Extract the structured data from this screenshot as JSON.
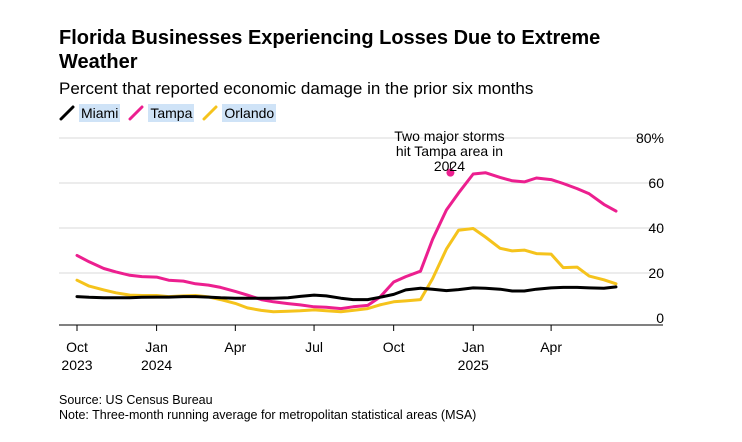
{
  "header": {
    "title": "Florida Businesses Experiencing Losses Due to Extreme Weather",
    "subtitle": "Percent that reported economic damage in the prior six months"
  },
  "footer": {
    "source": "Source: US Census Bureau",
    "note": "Note: Three-month running average for metropolitan statistical areas (MSA)"
  },
  "chart_data": {
    "type": "line",
    "x_labels": [
      "2023-10-01",
      "2023-10-15",
      "2023-11-01",
      "2023-11-15",
      "2023-12-01",
      "2023-12-15",
      "2024-01-01",
      "2024-01-15",
      "2024-02-01",
      "2024-02-15",
      "2024-03-01",
      "2024-03-15",
      "2024-04-01",
      "2024-04-15",
      "2024-05-01",
      "2024-05-15",
      "2024-06-01",
      "2024-06-15",
      "2024-07-01",
      "2024-07-15",
      "2024-08-01",
      "2024-08-15",
      "2024-09-01",
      "2024-09-15",
      "2024-10-01",
      "2024-10-15",
      "2024-11-01",
      "2024-11-15",
      "2024-12-01",
      "2024-12-15",
      "2025-01-01",
      "2025-01-15",
      "2025-02-01",
      "2025-02-15",
      "2025-03-01",
      "2025-03-15",
      "2025-04-01",
      "2025-04-15",
      "2025-05-01",
      "2025-05-15",
      "2025-06-01",
      "2025-06-15"
    ],
    "series": [
      {
        "name": "Miami",
        "color": "#000000",
        "values": [
          9.5,
          9.2,
          9,
          9,
          9,
          9.2,
          9.3,
          9.3,
          9.5,
          9.5,
          9.3,
          9,
          8.8,
          8.8,
          8.8,
          8.8,
          9,
          9.6,
          10.2,
          9.8,
          8.8,
          8.2,
          8.2,
          9.2,
          10.5,
          12.5,
          13.2,
          12.8,
          12.2,
          12.6,
          13.4,
          13.2,
          12.8,
          12,
          12,
          12.8,
          13.4,
          13.6,
          13.6,
          13.4,
          13.2,
          13.8
        ]
      },
      {
        "name": "Tampa",
        "color": "#ec1f8f",
        "values": [
          27.8,
          25,
          22,
          20.5,
          19,
          18.4,
          18.2,
          16.8,
          16.4,
          15.2,
          14.6,
          13.6,
          11.8,
          10.2,
          8.2,
          7.2,
          6.4,
          5.8,
          5,
          4.8,
          4.2,
          5,
          5.6,
          9.2,
          16,
          18.4,
          20.8,
          35,
          48,
          55.5,
          64,
          64.6,
          62.5,
          61,
          60.5,
          62.2,
          61.5,
          59.8,
          57.5,
          55.2,
          50.5,
          47.5
        ]
      },
      {
        "name": "Orlando",
        "color": "#f5c31c",
        "values": [
          16.8,
          14.2,
          12.5,
          11.2,
          10.2,
          10,
          10,
          9.5,
          9.8,
          10,
          9.4,
          8.2,
          6.5,
          4.5,
          3.4,
          2.8,
          3,
          3.2,
          3.6,
          3.2,
          2.8,
          3.4,
          4.2,
          5.8,
          7.2,
          7.6,
          8.2,
          17.5,
          30.6,
          39,
          39.8,
          36,
          31,
          29.8,
          30.2,
          28.6,
          28.4,
          22.4,
          22.6,
          18.6,
          17,
          15.2
        ]
      }
    ],
    "ylim": [
      0,
      80
    ],
    "y_ticks": [
      "0",
      "20",
      "40",
      "60",
      "80%"
    ],
    "y_tick_values": [
      0,
      20,
      40,
      60,
      80
    ],
    "x_ticks": [
      {
        "label_top": "Oct",
        "label_bottom": "2023",
        "date": "2023-10-01"
      },
      {
        "label_top": "Jan",
        "label_bottom": "2024",
        "date": "2024-01-01"
      },
      {
        "label_top": "Apr",
        "label_bottom": "",
        "date": "2024-04-01"
      },
      {
        "label_top": "Jul",
        "label_bottom": "",
        "date": "2024-07-01"
      },
      {
        "label_top": "Oct",
        "label_bottom": "",
        "date": "2024-10-01"
      },
      {
        "label_top": "Jan",
        "label_bottom": "2025",
        "date": "2025-01-01"
      },
      {
        "label_top": "Apr",
        "label_bottom": "",
        "date": "2025-04-01"
      }
    ],
    "annotation": {
      "lines": [
        "Two major storms",
        "hit Tampa area in",
        "2024"
      ],
      "series": "Tampa",
      "date": "2024-12-01",
      "value": 64.6
    },
    "grid": "horizontal",
    "legend_position": "top-left"
  }
}
